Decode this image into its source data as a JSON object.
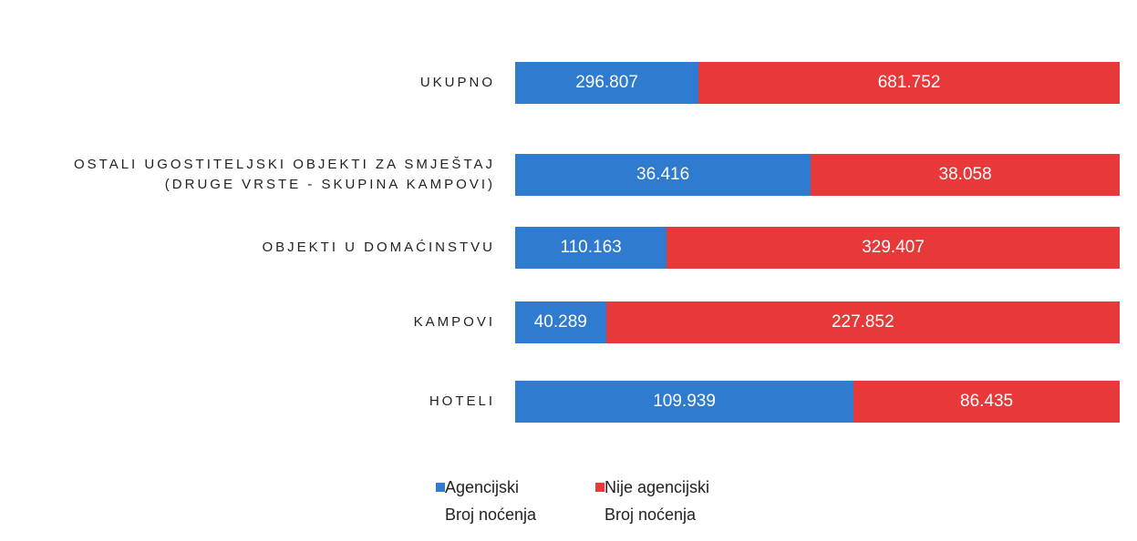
{
  "chart_data": {
    "type": "stacked-bar-100",
    "categories": [
      "UKUPNO",
      "OSTALI UGOSTITELJSKI OBJEKTI ZA SMJEŠTAJ\n(DRUGE VRSTE - SKUPINA KAMPOVI)",
      "OBJEKTI U DOMAĆINSTVU",
      "KAMPOVI",
      "HOTELI"
    ],
    "series": [
      {
        "name": "Agencijski\nBroj noćenja",
        "color": "#2e7bcf",
        "values": [
          296807,
          36416,
          110163,
          40289,
          109939
        ],
        "value_labels": [
          "296.807",
          "36.416",
          "110.163",
          "40.289",
          "109.939"
        ]
      },
      {
        "name": "Nije agencijski\nBroj noćenja",
        "color": "#e8393a",
        "values": [
          681752,
          38058,
          329407,
          227852,
          86435
        ],
        "value_labels": [
          "681.752",
          "38.058",
          "329.407",
          "227.852",
          "86.435"
        ]
      }
    ],
    "legend": "bottom"
  }
}
